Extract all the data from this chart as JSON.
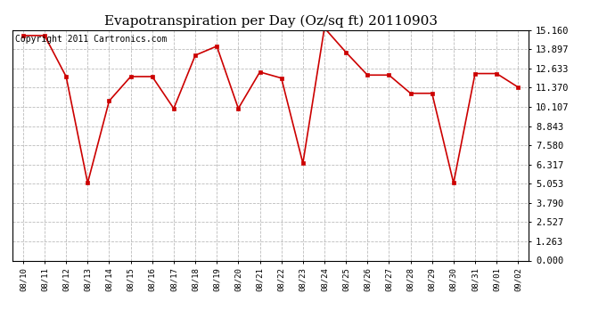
{
  "title": "Evapotranspiration per Day (Oz/sq ft) 20110903",
  "copyright_text": "Copyright 2011 Cartronics.com",
  "x_labels": [
    "08/10",
    "08/11",
    "08/12",
    "08/13",
    "08/14",
    "08/15",
    "08/16",
    "08/17",
    "08/18",
    "08/19",
    "08/20",
    "08/21",
    "08/22",
    "08/23",
    "08/24",
    "08/25",
    "08/26",
    "08/27",
    "08/28",
    "08/29",
    "08/30",
    "08/31",
    "09/01",
    "09/02"
  ],
  "y_values": [
    14.8,
    14.8,
    12.1,
    5.1,
    10.5,
    12.1,
    12.1,
    10.0,
    13.5,
    14.1,
    10.0,
    12.4,
    12.0,
    6.4,
    15.3,
    13.7,
    12.2,
    12.2,
    11.0,
    11.0,
    5.1,
    12.3,
    12.3,
    11.4
  ],
  "y_ticks": [
    0.0,
    1.263,
    2.527,
    3.79,
    5.053,
    6.317,
    7.58,
    8.843,
    10.107,
    11.37,
    12.633,
    13.897,
    15.16
  ],
  "y_min": 0.0,
  "y_max": 15.16,
  "line_color": "#cc0000",
  "marker": "s",
  "marker_size": 3,
  "background_color": "#ffffff",
  "grid_color": "#bbbbbb",
  "title_fontsize": 11,
  "copyright_fontsize": 7,
  "tick_fontsize": 7.5,
  "xtick_fontsize": 6.5
}
